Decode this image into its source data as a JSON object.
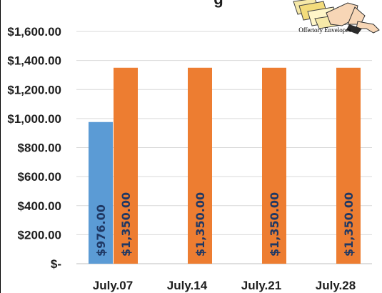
{
  "chart_data": {
    "type": "bar",
    "title": "g",
    "categories": [
      "July.07",
      "July.14",
      "July.21",
      "July.28"
    ],
    "series": [
      {
        "values": [
          976,
          null,
          null,
          null
        ],
        "color": "#5b9bd5",
        "labels": [
          "$976.00",
          "",
          "",
          ""
        ]
      },
      {
        "values": [
          1350,
          1350,
          1350,
          1350
        ],
        "color": "#ed7d31",
        "labels": [
          "$1,350.00",
          "$1,350.00",
          "$1,350.00",
          "$1,350.00"
        ]
      }
    ],
    "ylim": [
      0,
      1600
    ],
    "yticks": [
      0,
      200,
      400,
      600,
      800,
      1000,
      1200,
      1400,
      1600
    ],
    "ytick_labels": [
      "$-",
      "$200.00",
      "$400.00",
      "$600.00",
      "$800.00",
      "$1,000.00",
      "$1,200.00",
      "$1,400.00",
      "$1,600.00"
    ],
    "grid": true,
    "legend": "none",
    "gridline_color": "#d9d9d9",
    "label_color": "#1f3864"
  },
  "logo": {
    "caption": "Offertory Envelopes",
    "icon": "offertory-envelopes-clipart"
  }
}
